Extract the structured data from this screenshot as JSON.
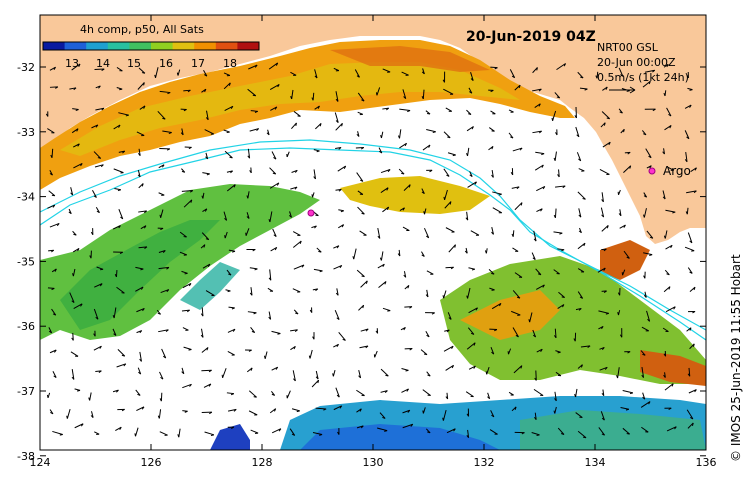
{
  "legend": {
    "title": "4h comp, p50, All Sats",
    "ticks": [
      "13",
      "14",
      "15",
      "16",
      "17",
      "18"
    ],
    "colors": [
      "#0a1aa0",
      "#1e60d8",
      "#1ea0d0",
      "#28c0a0",
      "#40c060",
      "#90d020",
      "#e0c010",
      "#f09000",
      "#e05010",
      "#b01010"
    ]
  },
  "title": "20-Jun-2019 04Z",
  "info": {
    "product": "NRT00 GSL",
    "date": "20-Jun 00:00Z",
    "scale": "0.5m/s (1kt 24h)"
  },
  "argo_label": "Argo",
  "credit": "© IMOS 25-Jun-2019 11:55 Hobart",
  "x_ticks": [
    "124",
    "126",
    "128",
    "130",
    "132",
    "134",
    "136"
  ],
  "y_ticks": [
    "-32",
    "-33",
    "-34",
    "-35",
    "-36",
    "-37",
    "-38"
  ],
  "colors": {
    "land": "#f9c89a",
    "frame": "#000000",
    "bathymetry": "#22d3e6",
    "argo": "#ff33cc"
  }
}
